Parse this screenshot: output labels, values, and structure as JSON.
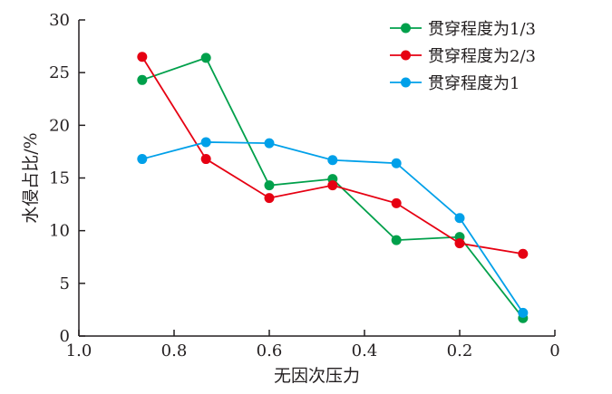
{
  "chart_data": {
    "type": "line",
    "title": "",
    "xlabel": "无因次压力",
    "ylabel": "水侵占比/%",
    "xlim": [
      1.0,
      0
    ],
    "ylim": [
      0,
      30
    ],
    "x_ticks": [
      1.0,
      0.8,
      0.6,
      0.4,
      0.2,
      0
    ],
    "x_tick_labels": [
      "1.0",
      "0.8",
      "0.6",
      "0.4",
      "0.2",
      "0"
    ],
    "y_ticks": [
      0,
      5,
      10,
      15,
      20,
      25,
      30
    ],
    "y_tick_labels": [
      "0",
      "5",
      "10",
      "15",
      "20",
      "25",
      "30"
    ],
    "grid": false,
    "legend_position": "top-right",
    "x": [
      0.867,
      0.733,
      0.6,
      0.467,
      0.333,
      0.2,
      0.067
    ],
    "series": [
      {
        "name": "贯穿程度为1/3",
        "color": "#00a04b",
        "values": [
          24.3,
          26.4,
          14.3,
          14.9,
          9.1,
          9.4,
          1.7
        ]
      },
      {
        "name": "贯穿程度为2/3",
        "color": "#e60012",
        "values": [
          26.5,
          16.8,
          13.1,
          14.3,
          12.6,
          8.8,
          7.8
        ]
      },
      {
        "name": "贯穿程度为1",
        "color": "#00a0e9",
        "values": [
          16.8,
          18.4,
          18.3,
          16.7,
          16.4,
          11.2,
          2.2
        ]
      }
    ]
  }
}
